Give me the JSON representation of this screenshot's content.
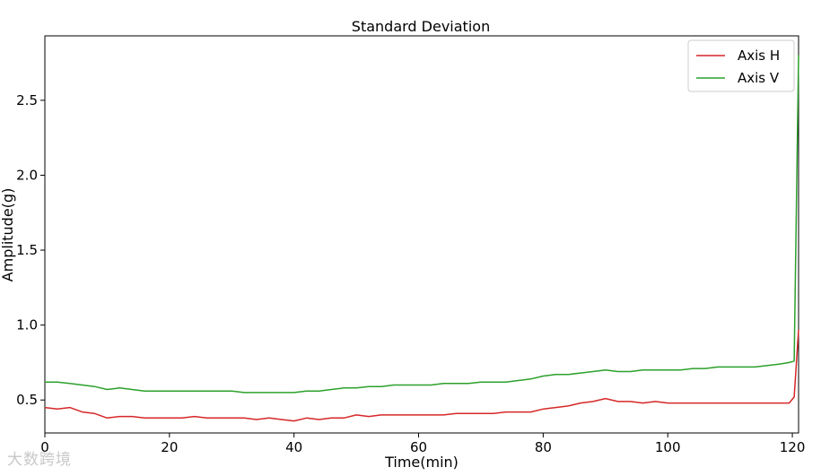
{
  "chart_data": {
    "type": "line",
    "title": "Standard Deviation",
    "xlabel": "Time(min)",
    "ylabel": "Amplitude(g)",
    "xlim": [
      0,
      121
    ],
    "ylim": [
      0.28,
      2.93
    ],
    "xticks": [
      0,
      20,
      40,
      60,
      80,
      100,
      120
    ],
    "yticks": [
      0.5,
      1.0,
      1.5,
      2.0,
      2.5
    ],
    "xtick_labels": [
      "0",
      "20",
      "40",
      "60",
      "80",
      "100",
      "120"
    ],
    "ytick_labels": [
      "0.5",
      "1.0",
      "1.5",
      "2.0",
      "2.5"
    ],
    "grid": false,
    "legend": "top-right",
    "x": [
      0,
      2,
      4,
      6,
      8,
      10,
      12,
      14,
      16,
      18,
      20,
      22,
      24,
      26,
      28,
      30,
      32,
      34,
      36,
      38,
      40,
      42,
      44,
      46,
      48,
      50,
      52,
      54,
      56,
      58,
      60,
      62,
      64,
      66,
      68,
      70,
      72,
      74,
      76,
      78,
      80,
      82,
      84,
      86,
      88,
      90,
      92,
      94,
      96,
      98,
      100,
      102,
      104,
      106,
      108,
      110,
      112,
      114,
      116,
      118,
      119.5,
      120.3,
      121
    ],
    "series": [
      {
        "name": "Axis H",
        "color": "#d62728",
        "values": [
          0.45,
          0.44,
          0.45,
          0.42,
          0.41,
          0.38,
          0.39,
          0.39,
          0.38,
          0.38,
          0.38,
          0.38,
          0.39,
          0.38,
          0.38,
          0.38,
          0.38,
          0.37,
          0.38,
          0.37,
          0.36,
          0.38,
          0.37,
          0.38,
          0.38,
          0.4,
          0.39,
          0.4,
          0.4,
          0.4,
          0.4,
          0.4,
          0.4,
          0.41,
          0.41,
          0.41,
          0.41,
          0.42,
          0.42,
          0.42,
          0.44,
          0.45,
          0.46,
          0.48,
          0.49,
          0.51,
          0.49,
          0.49,
          0.48,
          0.49,
          0.48,
          0.48,
          0.48,
          0.48,
          0.48,
          0.48,
          0.48,
          0.48,
          0.48,
          0.48,
          0.48,
          0.52,
          0.97
        ]
      },
      {
        "name": "Axis V",
        "color": "#2ca02c",
        "values": [
          0.62,
          0.62,
          0.61,
          0.6,
          0.59,
          0.57,
          0.58,
          0.57,
          0.56,
          0.56,
          0.56,
          0.56,
          0.56,
          0.56,
          0.56,
          0.56,
          0.55,
          0.55,
          0.55,
          0.55,
          0.55,
          0.56,
          0.56,
          0.57,
          0.58,
          0.58,
          0.59,
          0.59,
          0.6,
          0.6,
          0.6,
          0.6,
          0.61,
          0.61,
          0.61,
          0.62,
          0.62,
          0.62,
          0.63,
          0.64,
          0.66,
          0.67,
          0.67,
          0.68,
          0.69,
          0.7,
          0.69,
          0.69,
          0.7,
          0.7,
          0.7,
          0.7,
          0.71,
          0.71,
          0.72,
          0.72,
          0.72,
          0.72,
          0.73,
          0.74,
          0.75,
          0.76,
          2.8
        ]
      }
    ]
  },
  "watermark": "大数跨境"
}
